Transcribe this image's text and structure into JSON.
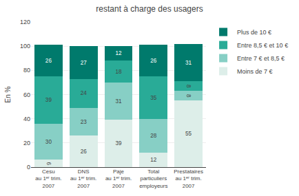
{
  "chart_data": {
    "type": "bar",
    "title": "restant à charge des usagers",
    "ylabel": "En %",
    "categories": [
      "Cesu\nau 1ᵉʳ trim.\n2007",
      "DNS\nau 1ᵉʳ trim.\n2007",
      "Paje\nau 1ᵉʳ trim.\n2007",
      "Total\nparticuliers\nemployeurs",
      "Prestataires\nau 1ᵉʳ trim.\n2007"
    ],
    "series": [
      {
        "name": "Moins de 7 €",
        "color": "#ddeee9",
        "values": [
          6,
          26,
          39,
          12,
          55
        ]
      },
      {
        "name": "Entre 7 € et 8,5 €",
        "color": "#87cfc5",
        "values": [
          30,
          23,
          31,
          28,
          8
        ]
      },
      {
        "name": "Entre 8,5 € et 10 €",
        "color": "#29ab97",
        "values": [
          39,
          24,
          18,
          35,
          8
        ]
      },
      {
        "name": "Plus de 10 €",
        "color": "#007a6c",
        "values": [
          26,
          27,
          12,
          26,
          31
        ]
      }
    ],
    "stacked": true,
    "data_labels": true,
    "ylim": [
      0,
      120
    ],
    "yticks": [
      0,
      20,
      40,
      60,
      80,
      100,
      120
    ],
    "grid": true,
    "legend": "right"
  }
}
